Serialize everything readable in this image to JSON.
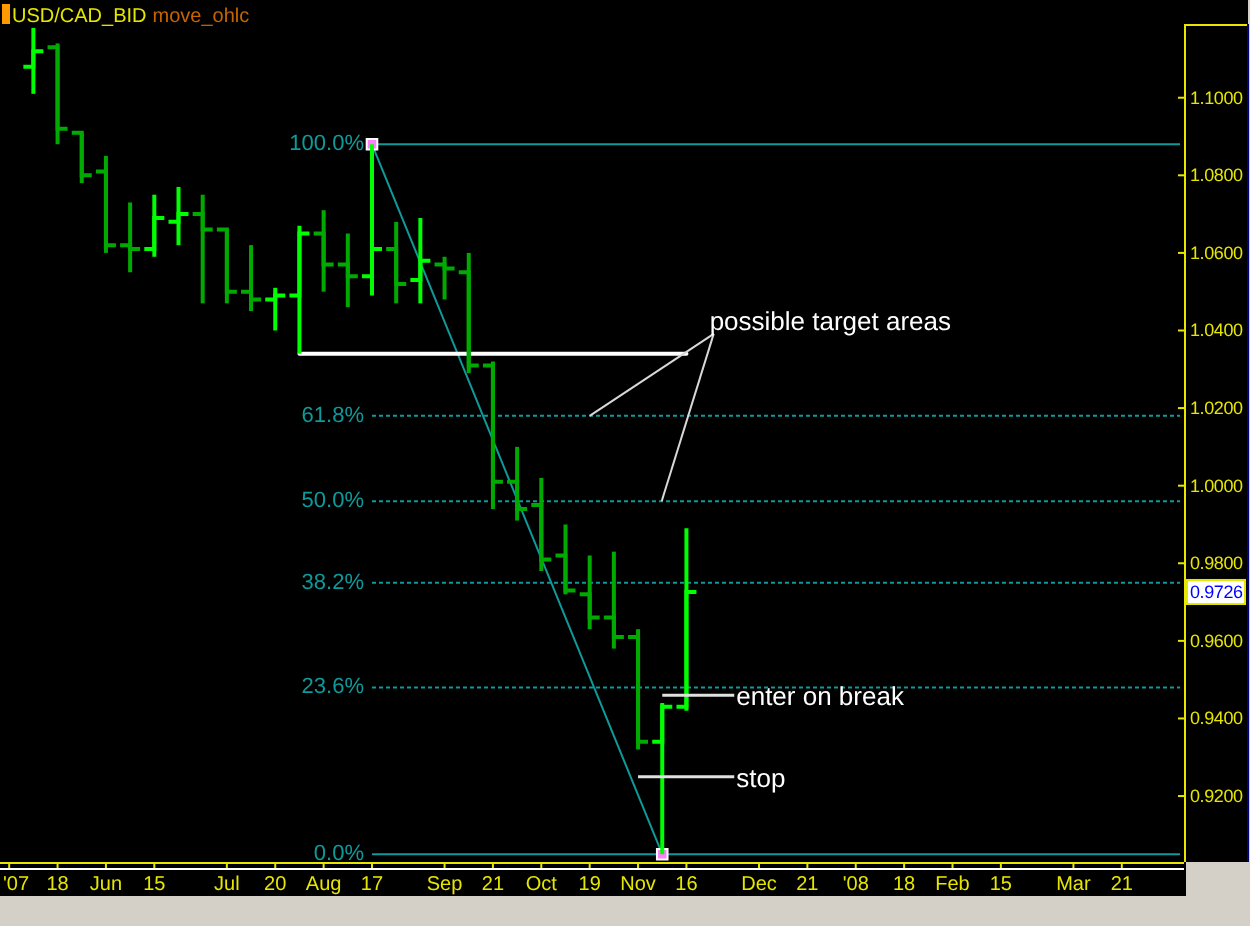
{
  "chart_data": {
    "type": "candlestick",
    "title": "USD/CAD_BID",
    "subtitle": "move_ohlc",
    "x": [
      "2007-05-11",
      "2007-05-18",
      "2007-05-25",
      "2007-06-01",
      "2007-06-08",
      "2007-06-15",
      "2007-06-22",
      "2007-06-29",
      "2007-07-06",
      "2007-07-13",
      "2007-07-20",
      "2007-07-27",
      "2007-08-03",
      "2007-08-10",
      "2007-08-17",
      "2007-08-24",
      "2007-08-31",
      "2007-09-07",
      "2007-09-14",
      "2007-09-21",
      "2007-09-28",
      "2007-10-05",
      "2007-10-12",
      "2007-10-19",
      "2007-10-26",
      "2007-11-02",
      "2007-11-09",
      "2007-11-16"
    ],
    "ohlc": [
      [
        1.108,
        1.118,
        1.101,
        1.112
      ],
      [
        1.113,
        1.114,
        1.088,
        1.092
      ],
      [
        1.091,
        1.091,
        1.078,
        1.08
      ],
      [
        1.081,
        1.085,
        1.06,
        1.062
      ],
      [
        1.062,
        1.073,
        1.055,
        1.061
      ],
      [
        1.061,
        1.075,
        1.059,
        1.069
      ],
      [
        1.068,
        1.077,
        1.062,
        1.07
      ],
      [
        1.07,
        1.075,
        1.047,
        1.066
      ],
      [
        1.066,
        1.066,
        1.047,
        1.05
      ],
      [
        1.05,
        1.062,
        1.045,
        1.048
      ],
      [
        1.048,
        1.051,
        1.04,
        1.049
      ],
      [
        1.049,
        1.067,
        1.034,
        1.065
      ],
      [
        1.065,
        1.071,
        1.05,
        1.057
      ],
      [
        1.057,
        1.065,
        1.046,
        1.054
      ],
      [
        1.054,
        1.088,
        1.049,
        1.061
      ],
      [
        1.061,
        1.068,
        1.047,
        1.052
      ],
      [
        1.053,
        1.069,
        1.047,
        1.058
      ],
      [
        1.057,
        1.059,
        1.048,
        1.056
      ],
      [
        1.055,
        1.06,
        1.029,
        1.031
      ],
      [
        1.031,
        1.032,
        0.994,
        1.001
      ],
      [
        1.001,
        1.01,
        0.991,
        0.994
      ],
      [
        0.995,
        1.002,
        0.978,
        0.981
      ],
      [
        0.982,
        0.99,
        0.972,
        0.973
      ],
      [
        0.972,
        0.982,
        0.963,
        0.966
      ],
      [
        0.966,
        0.983,
        0.958,
        0.961
      ],
      [
        0.961,
        0.963,
        0.932,
        0.934
      ],
      [
        0.934,
        0.944,
        0.905,
        0.943
      ],
      [
        0.943,
        0.989,
        0.942,
        0.9726
      ]
    ],
    "colors": [
      "#00ff00",
      "#00aa00",
      "#00aa00",
      "#00aa00",
      "#00aa00",
      "#00ff00",
      "#00ff00",
      "#00aa00",
      "#00aa00",
      "#00aa00",
      "#00ff00",
      "#00ff00",
      "#00aa00",
      "#00aa00",
      "#00ff00",
      "#00aa00",
      "#00ff00",
      "#00aa00",
      "#00aa00",
      "#00aa00",
      "#00aa00",
      "#00aa00",
      "#00aa00",
      "#00aa00",
      "#00aa00",
      "#00aa00",
      "#00ff00",
      "#00ff00"
    ],
    "series": [
      {
        "type": "line",
        "color": "#0e9a9a",
        "x": [
          "2007-08-17",
          "2007-11-09"
        ],
        "values": [
          1.088,
          0.905
        ],
        "marker": "square"
      },
      {
        "type": "line",
        "color": "#ffffff",
        "x": [
          "2007-07-27",
          "2007-11-16"
        ],
        "values": [
          1.034,
          1.034
        ]
      }
    ],
    "xlim": [
      "2007-05-02T12:00",
      "2008-04-08"
    ],
    "xticks": [
      {
        "value": "2007-05-04",
        "label": "'07"
      },
      {
        "value": "2007-05-18",
        "label": "18"
      },
      {
        "value": "2007-06-01",
        "label": "Jun"
      },
      {
        "value": "2007-06-15",
        "label": "15"
      },
      {
        "value": "2007-07-06",
        "label": "Jul"
      },
      {
        "value": "2007-07-20",
        "label": "20"
      },
      {
        "value": "2007-08-03",
        "label": "Aug"
      },
      {
        "value": "2007-08-17",
        "label": "17"
      },
      {
        "value": "2007-09-07",
        "label": "Sep"
      },
      {
        "value": "2007-09-21",
        "label": "21"
      },
      {
        "value": "2007-10-05",
        "label": "Oct"
      },
      {
        "value": "2007-10-19",
        "label": "19"
      },
      {
        "value": "2007-11-02",
        "label": "Nov"
      },
      {
        "value": "2007-11-16",
        "label": "16"
      },
      {
        "value": "2007-12-07",
        "label": "Dec"
      },
      {
        "value": "2007-12-21",
        "label": "21"
      },
      {
        "value": "2008-01-04",
        "label": "'08"
      },
      {
        "value": "2008-01-18",
        "label": "18"
      },
      {
        "value": "2008-02-01",
        "label": "Feb"
      },
      {
        "value": "2008-02-15",
        "label": "15"
      },
      {
        "value": "2008-03-07",
        "label": "Mar"
      },
      {
        "value": "2008-03-21",
        "label": "21"
      }
    ],
    "ylim": [
      0.903,
      1.119
    ],
    "yticks": [
      {
        "value": 0.92,
        "label": "0.9200"
      },
      {
        "value": 0.94,
        "label": "0.9400"
      },
      {
        "value": 0.96,
        "label": "0.9600"
      },
      {
        "value": 0.98,
        "label": "0.9800"
      },
      {
        "value": 1.0,
        "label": "1.0000"
      },
      {
        "value": 1.02,
        "label": "1.0200"
      },
      {
        "value": 1.04,
        "label": "1.0400"
      },
      {
        "value": 1.06,
        "label": "1.0600"
      },
      {
        "value": 1.08,
        "label": "1.0800"
      },
      {
        "value": 1.1,
        "label": "1.1000"
      }
    ],
    "ref_lines": [
      {
        "axis": "y",
        "value": 1.088,
        "color": "#0e9a9a",
        "line_style": "solid"
      },
      {
        "axis": "y",
        "value": 1.018,
        "color": "#0e9a9a",
        "line_style": "dotted"
      },
      {
        "axis": "y",
        "value": 0.996,
        "color": "#0e9a9a",
        "line_style": "dotted"
      },
      {
        "axis": "y",
        "value": 0.975,
        "color": "#0e9a9a",
        "line_style": "dotted"
      },
      {
        "axis": "y",
        "value": 0.948,
        "color": "#0e9a9a",
        "line_style": "dotted"
      },
      {
        "axis": "y",
        "value": 0.905,
        "color": "#0e9a9a",
        "line_style": "solid"
      }
    ],
    "annotations": [
      {
        "text": "100.0%",
        "x": "2007-08-17",
        "y": 1.088
      },
      {
        "text": "61.8%",
        "x": "2007-08-17",
        "y": 1.018
      },
      {
        "text": "50.0%",
        "x": "2007-08-17",
        "y": 0.996
      },
      {
        "text": "38.2%",
        "x": "2007-08-17",
        "y": 0.975
      },
      {
        "text": "23.6%",
        "x": "2007-08-17",
        "y": 0.948
      },
      {
        "text": "0.0%",
        "x": "2007-08-17",
        "y": 0.905
      },
      {
        "text": "possible target areas",
        "x": "2007-10-19",
        "y": 1.018
      },
      {
        "text": "enter on break",
        "x": "2007-11-09",
        "y": 0.946
      },
      {
        "text": "stop",
        "x": "2007-11-02",
        "y": 0.925
      },
      "0.9726"
    ]
  }
}
